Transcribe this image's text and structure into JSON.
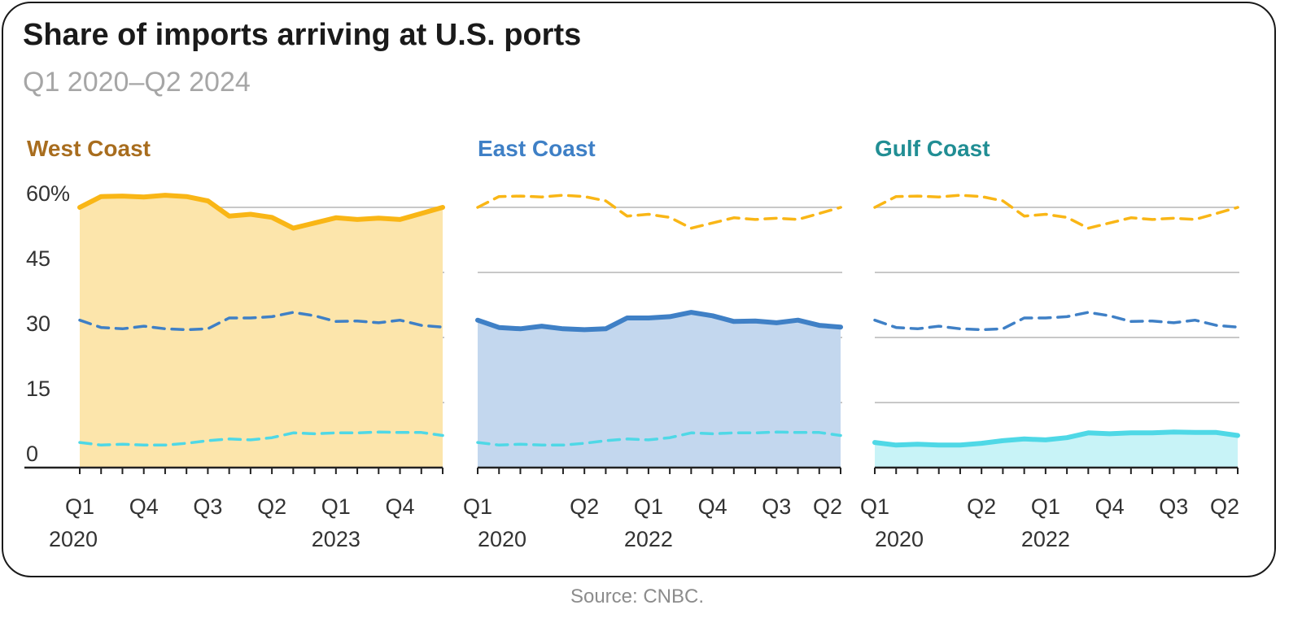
{
  "title": "Share of imports arriving at U.S. ports",
  "subtitle": "Q1 2020–Q2 2024",
  "source": "Source: CNBC.",
  "colors": {
    "west": "#f9b616",
    "east": "#3f80c6",
    "gulf": "#4fd8e6",
    "grid": "#c8c8c8",
    "axis": "#222222"
  },
  "chart_data": {
    "type": "line",
    "y_tick_labels": [
      "60%",
      "45",
      "30",
      "15",
      "0"
    ],
    "ylim": [
      0,
      60
    ],
    "x_quarters": [
      "Q1 2020",
      "Q2 2020",
      "Q3 2020",
      "Q4 2020",
      "Q1 2021",
      "Q2 2021",
      "Q3 2021",
      "Q4 2021",
      "Q1 2022",
      "Q2 2022",
      "Q3 2022",
      "Q4 2022",
      "Q1 2023",
      "Q2 2023",
      "Q3 2023",
      "Q4 2023",
      "Q1 2024",
      "Q2 2024"
    ],
    "series": [
      {
        "name": "West Coast",
        "values": [
          60.0,
          62.5,
          62.6,
          62.4,
          62.8,
          62.5,
          61.5,
          58.0,
          58.4,
          57.7,
          55.2,
          56.4,
          57.6,
          57.2,
          57.5,
          57.2,
          58.6,
          60.0
        ]
      },
      {
        "name": "East Coast",
        "values": [
          34.0,
          32.3,
          32.0,
          32.6,
          32.0,
          31.8,
          32.0,
          34.5,
          34.5,
          34.8,
          35.8,
          35.0,
          33.7,
          33.8,
          33.4,
          34.0,
          32.8,
          32.4
        ]
      },
      {
        "name": "Gulf Coast",
        "values": [
          5.8,
          5.2,
          5.4,
          5.2,
          5.2,
          5.6,
          6.2,
          6.6,
          6.4,
          6.9,
          8.0,
          7.8,
          8.0,
          8.0,
          8.2,
          8.1,
          8.1,
          7.4
        ]
      }
    ],
    "panels": [
      {
        "title": "West Coast",
        "highlight": 0,
        "x_tick_labels": [
          "Q1",
          "Q4",
          "Q3",
          "Q2",
          "Q1",
          "Q4"
        ],
        "x_tick_index": [
          0,
          3,
          6,
          9,
          12,
          15
        ],
        "x_year_labels": [
          "2020",
          "2023"
        ],
        "x_year_index": [
          0,
          12
        ]
      },
      {
        "title": "East Coast",
        "highlight": 1,
        "x_tick_labels": [
          "Q1",
          "Q2",
          "Q1",
          "Q4",
          "Q3",
          "Q2"
        ],
        "x_tick_index": [
          0,
          5,
          8,
          11,
          14,
          17
        ],
        "x_year_labels": [
          "2020",
          "2022"
        ],
        "x_year_index": [
          0,
          8
        ]
      },
      {
        "title": "Gulf Coast",
        "highlight": 2,
        "x_tick_labels": [
          "Q1",
          "Q2",
          "Q1",
          "Q4",
          "Q3",
          "Q2"
        ],
        "x_tick_index": [
          0,
          5,
          8,
          11,
          14,
          17
        ],
        "x_year_labels": [
          "2020",
          "2022"
        ],
        "x_year_index": [
          0,
          8
        ]
      }
    ]
  }
}
